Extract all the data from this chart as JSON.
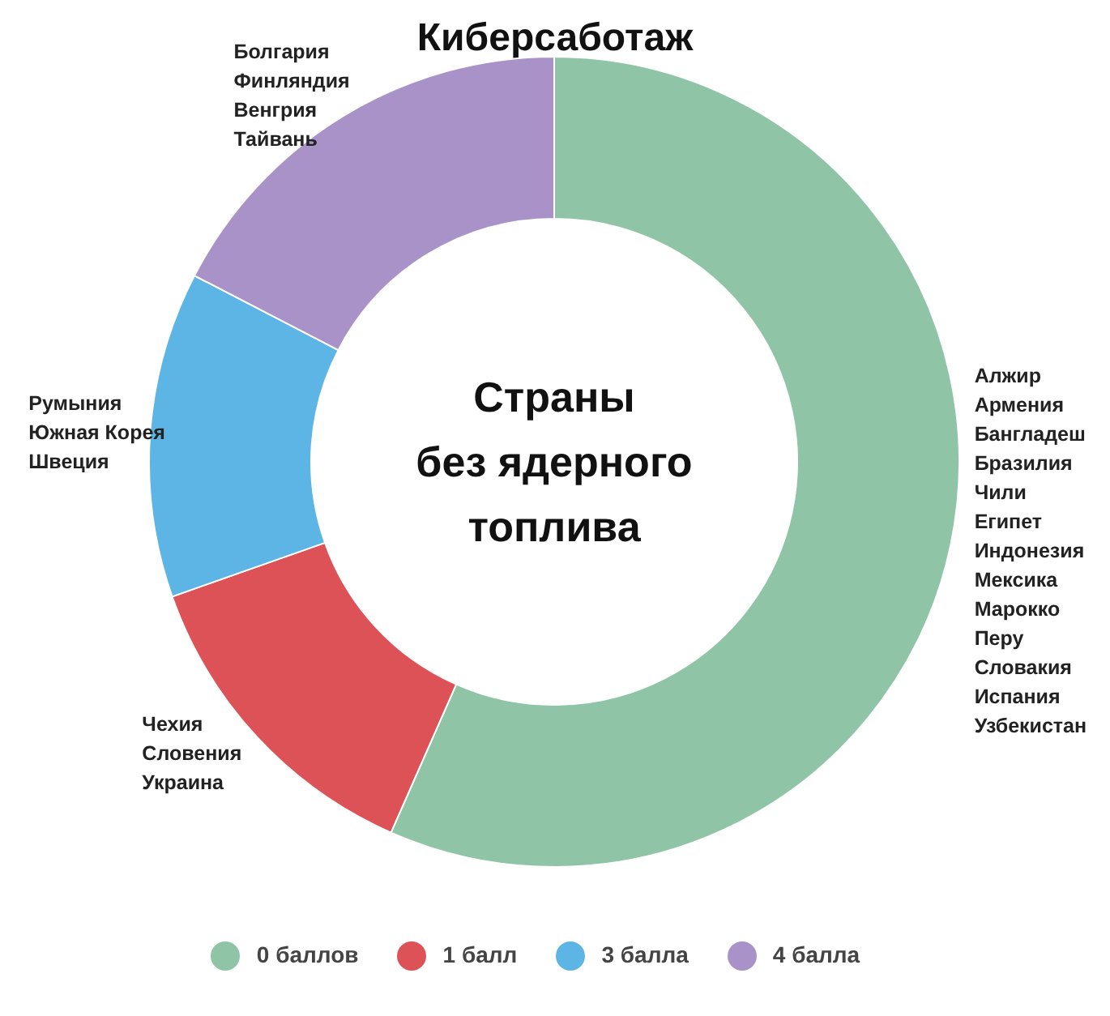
{
  "chart_data": {
    "type": "donut",
    "title": "Киберсаботаж",
    "categories": [
      "0 баллов",
      "1 балл",
      "3 балла",
      "4 балла"
    ],
    "values": [
      56.6,
      13.0,
      13.0,
      17.4
    ],
    "colors": [
      "#8fc4a6",
      "#dc5256",
      "#5db5e5",
      "#a892c8"
    ],
    "annotations": [
      "Страны\nбез ядерного\nтоплива",
      "Алжир\nАрмения\nБангладеш\nБразилия\nЧили\nЕгипет\nИндонезия\nМексика\nМарокко\nПеру\nСловакия\nИспания\nУзбекистан",
      "Чехия\nСловения\nУкраина",
      "Румыния\nЮжная Корея\nШвеция",
      "Болгария\nФинляндия\nВенгрия\nТайвань"
    ],
    "legend": "bottom"
  }
}
